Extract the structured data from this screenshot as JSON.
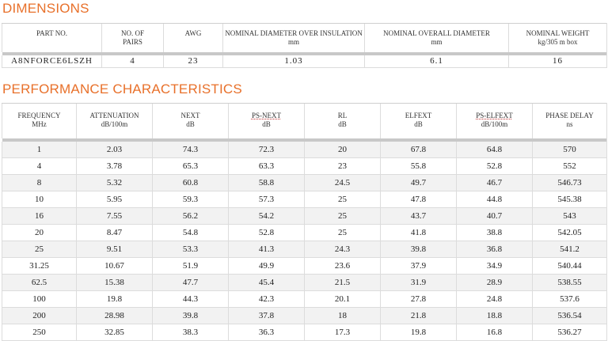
{
  "dimensions": {
    "title": "DIMENSIONS",
    "headers": [
      {
        "label": "PART NO.",
        "unit": ""
      },
      {
        "label": "NO. OF",
        "unit": "PAIRS"
      },
      {
        "label": "AWG",
        "unit": ""
      },
      {
        "label": "NOMINAL DIAMETER OVER INSULATION",
        "unit": "mm"
      },
      {
        "label": "NOMINAL OVERALL DIAMETER",
        "unit": "mm"
      },
      {
        "label": "NOMINAL WEIGHT",
        "unit": "kg/305 m box"
      }
    ],
    "row": [
      "A8NFORCE6LSZH",
      "4",
      "23",
      "1.03",
      "6.1",
      "16"
    ]
  },
  "performance": {
    "title": "PERFORMANCE CHARACTERISTICS",
    "headers": [
      {
        "label": "FREQUENCY",
        "unit": "MHz"
      },
      {
        "label": "ATTENUATION",
        "unit": "dB/100m"
      },
      {
        "label": "NEXT",
        "unit": "dB"
      },
      {
        "label": "PS-NEXT",
        "unit": "dB"
      },
      {
        "label": "RL",
        "unit": "dB"
      },
      {
        "label": "ELFEXT",
        "unit": "dB"
      },
      {
        "label": "PS-ELFEXT",
        "unit": "dB/100m"
      },
      {
        "label": "PHASE DELAY",
        "unit": "ns"
      }
    ],
    "rows": [
      [
        "1",
        "2.03",
        "74.3",
        "72.3",
        "20",
        "67.8",
        "64.8",
        "570"
      ],
      [
        "4",
        "3.78",
        "65.3",
        "63.3",
        "23",
        "55.8",
        "52.8",
        "552"
      ],
      [
        "8",
        "5.32",
        "60.8",
        "58.8",
        "24.5",
        "49.7",
        "46.7",
        "546.73"
      ],
      [
        "10",
        "5.95",
        "59.3",
        "57.3",
        "25",
        "47.8",
        "44.8",
        "545.38"
      ],
      [
        "16",
        "7.55",
        "56.2",
        "54.2",
        "25",
        "43.7",
        "40.7",
        "543"
      ],
      [
        "20",
        "8.47",
        "54.8",
        "52.8",
        "25",
        "41.8",
        "38.8",
        "542.05"
      ],
      [
        "25",
        "9.51",
        "53.3",
        "41.3",
        "24.3",
        "39.8",
        "36.8",
        "541.2"
      ],
      [
        "31.25",
        "10.67",
        "51.9",
        "49.9",
        "23.6",
        "37.9",
        "34.9",
        "540.44"
      ],
      [
        "62.5",
        "15.38",
        "47.7",
        "45.4",
        "21.5",
        "31.9",
        "28.9",
        "538.55"
      ],
      [
        "100",
        "19.8",
        "44.3",
        "42.3",
        "20.1",
        "27.8",
        "24.8",
        "537.6"
      ],
      [
        "200",
        "28.98",
        "39.8",
        "37.8",
        "18",
        "21.8",
        "18.8",
        "536.54"
      ],
      [
        "250",
        "32.85",
        "38.3",
        "36.3",
        "17.3",
        "19.8",
        "16.8",
        "536.27"
      ]
    ]
  }
}
